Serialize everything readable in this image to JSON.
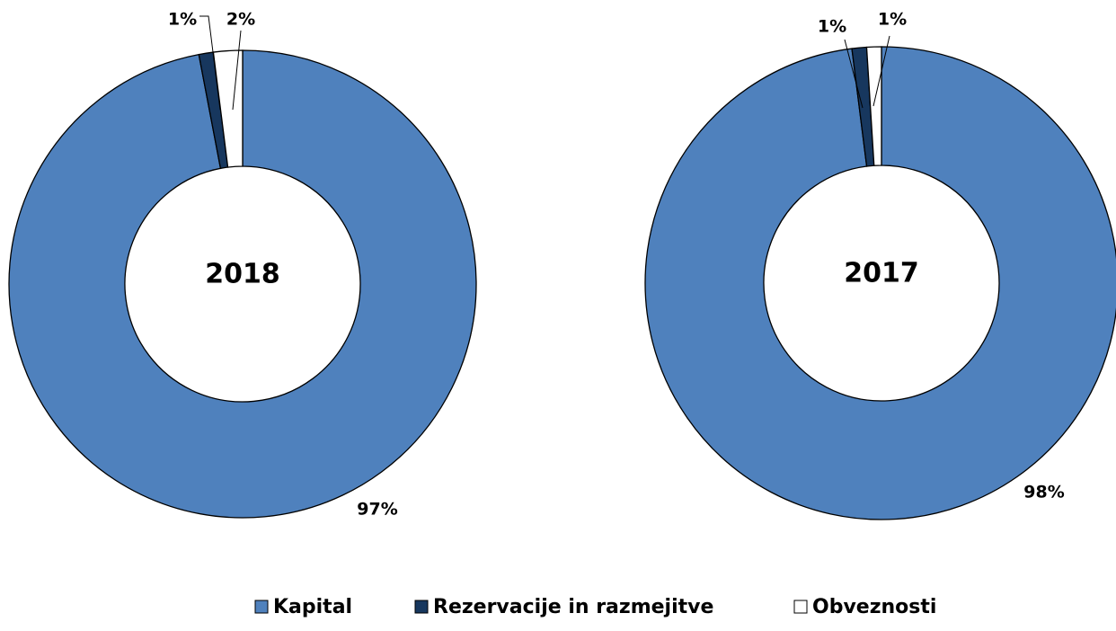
{
  "chart_data": [
    {
      "type": "donut",
      "center_text": "2018",
      "categories": [
        "Kapital",
        "Rezervacije in razmejitve",
        "Obveznosti"
      ],
      "values": [
        97,
        1,
        2
      ],
      "value_labels": [
        "97%",
        "1%",
        "2%"
      ],
      "colors": [
        "#4f81bd",
        "#17375e",
        "#ffffff"
      ]
    },
    {
      "type": "donut",
      "center_text": "2017",
      "categories": [
        "Kapital",
        "Rezervacije in razmejitve",
        "Obveznosti"
      ],
      "values": [
        98,
        1,
        1
      ],
      "value_labels": [
        "98%",
        "1%",
        "1%"
      ],
      "colors": [
        "#4f81bd",
        "#17375e",
        "#ffffff"
      ]
    }
  ]
}
